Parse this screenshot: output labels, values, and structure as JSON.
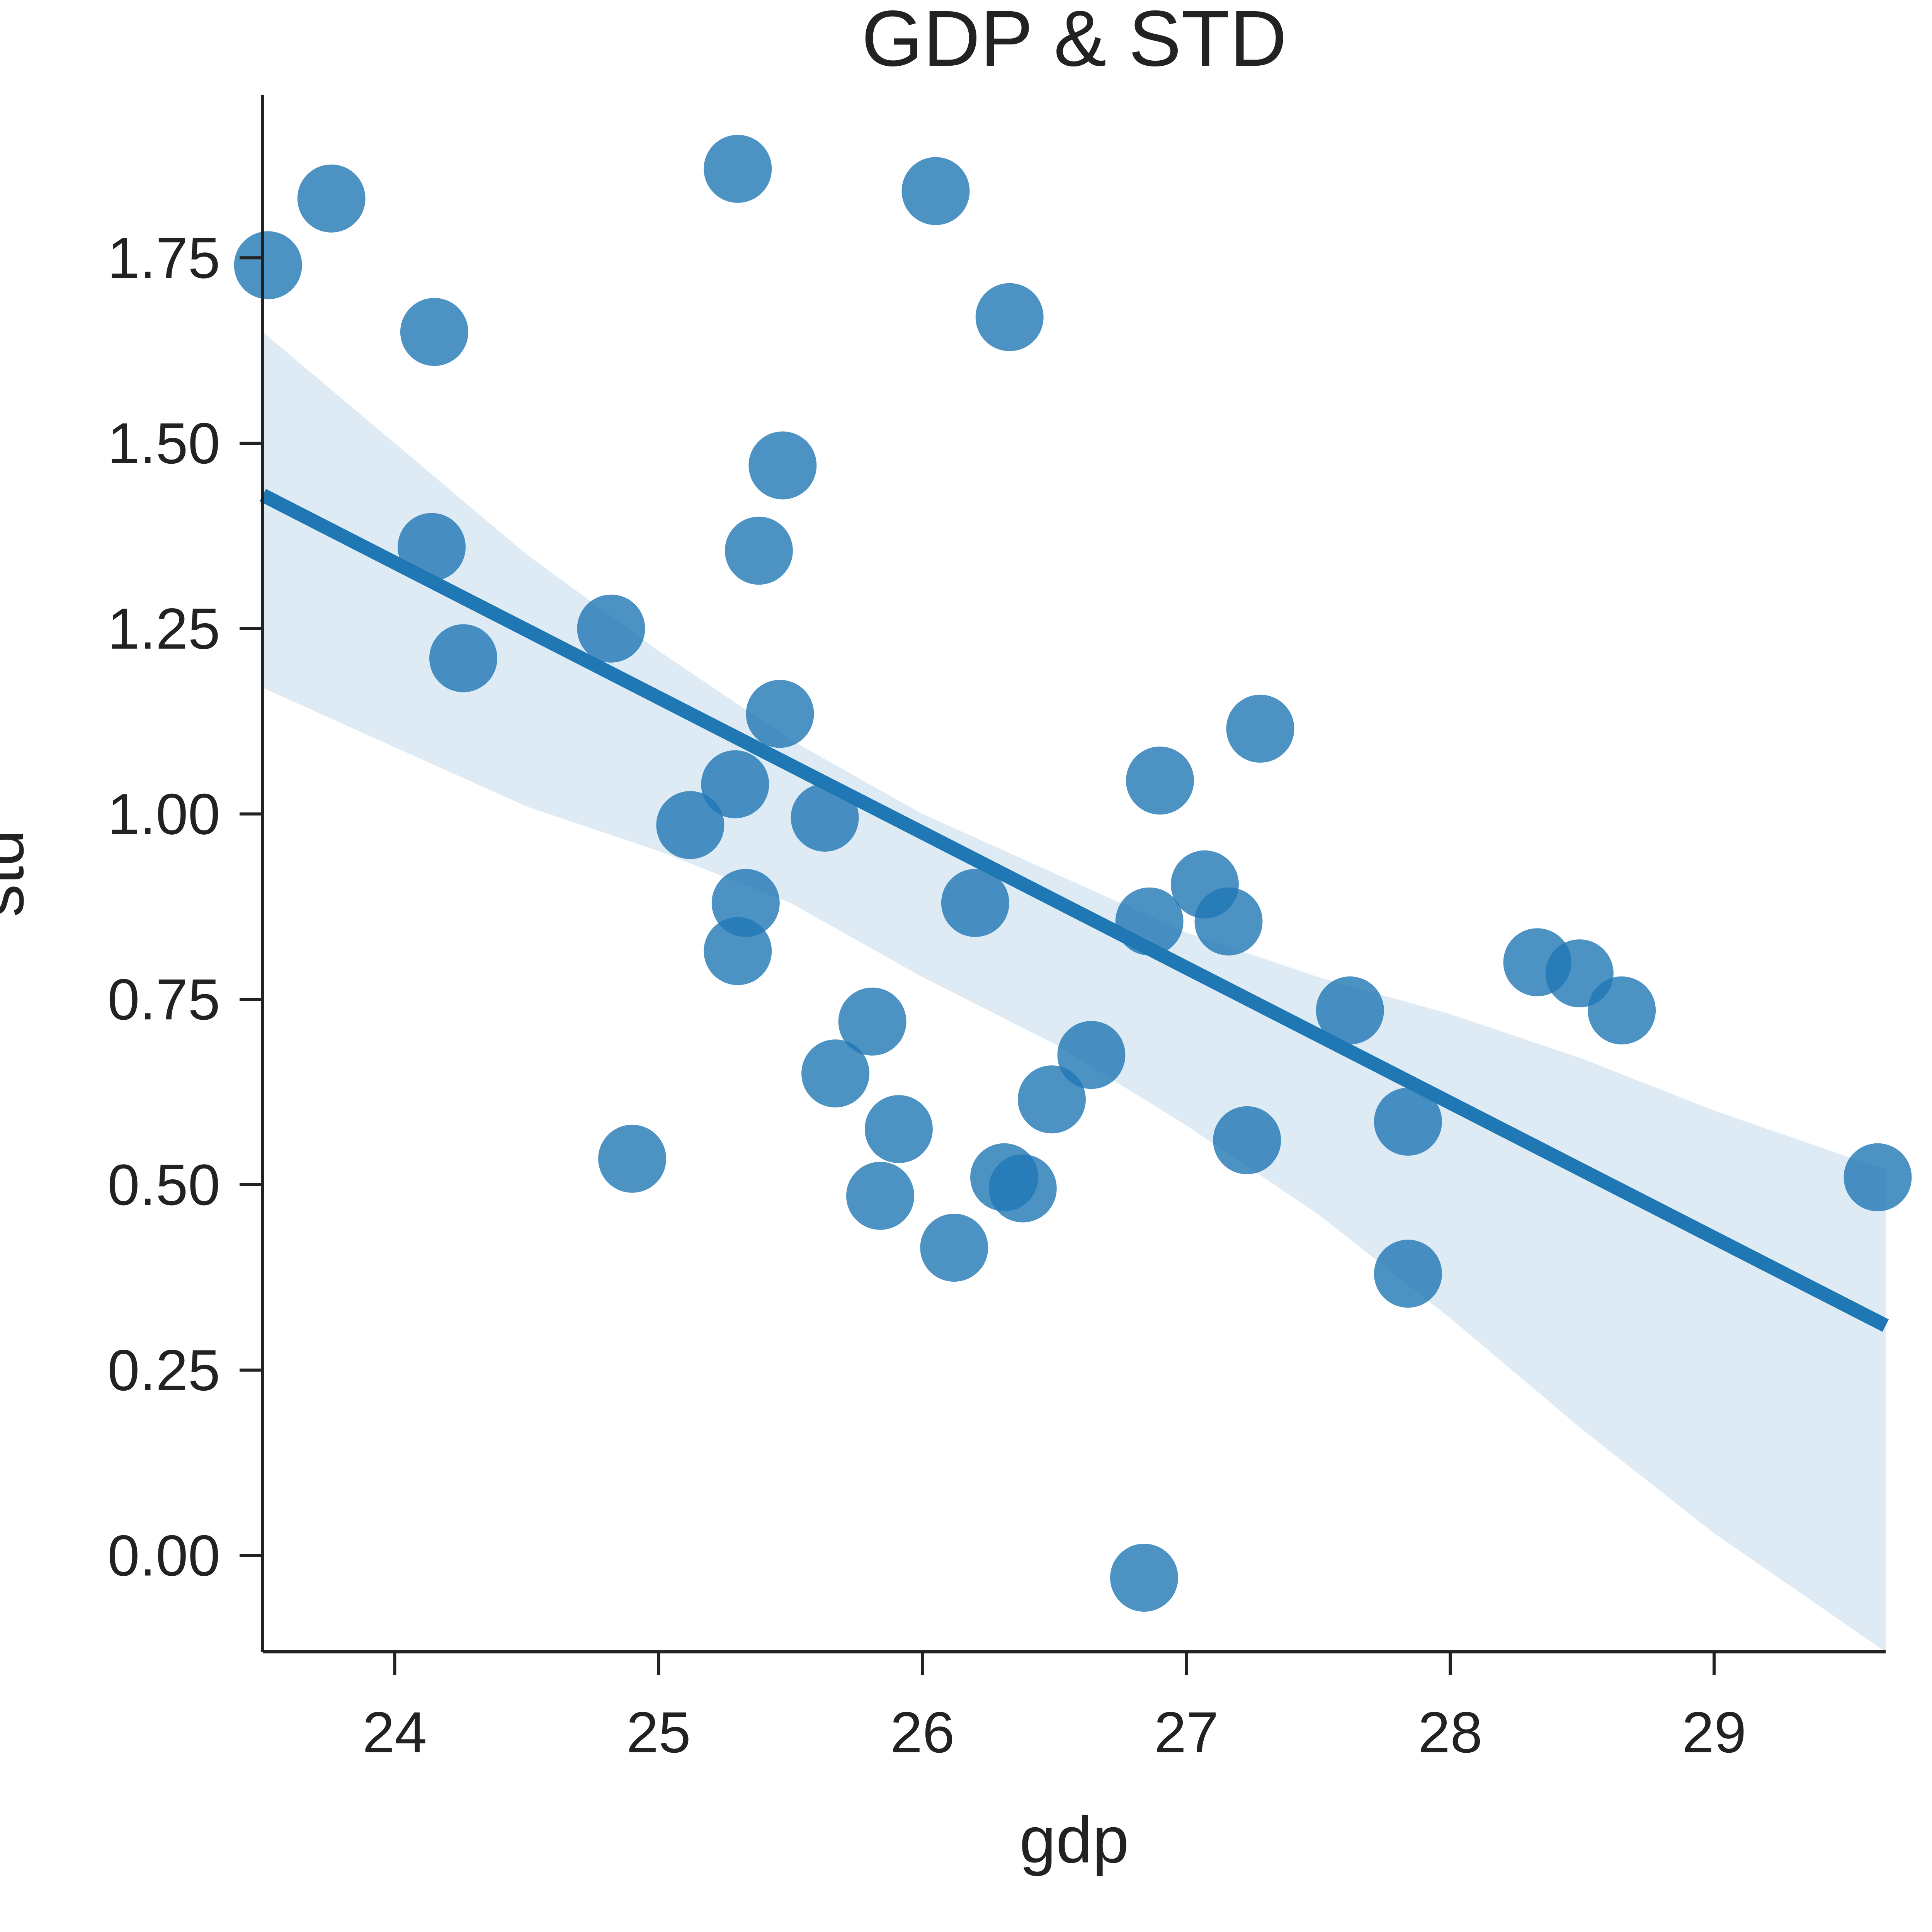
{
  "chart_data": {
    "type": "scatter",
    "title": "GDP & STD",
    "xlabel": "gdp",
    "ylabel": "std",
    "xlim": [
      23.5,
      29.65
    ],
    "ylim": [
      -0.13,
      1.97
    ],
    "x_ticks": [
      24,
      25,
      26,
      27,
      28,
      29
    ],
    "x_tick_labels": [
      "24",
      "25",
      "26",
      "27",
      "28",
      "29"
    ],
    "y_ticks": [
      0.0,
      0.25,
      0.5,
      0.75,
      1.0,
      1.25,
      1.5,
      1.75
    ],
    "y_tick_labels": [
      "0.00",
      "0.25",
      "0.50",
      "0.75",
      "1.00",
      "1.25",
      "1.50",
      "1.75"
    ],
    "grid": false,
    "points": [
      {
        "x": 23.52,
        "y": 1.74
      },
      {
        "x": 23.76,
        "y": 1.83
      },
      {
        "x": 24.15,
        "y": 1.65
      },
      {
        "x": 24.14,
        "y": 1.36
      },
      {
        "x": 24.26,
        "y": 1.21
      },
      {
        "x": 24.82,
        "y": 1.25
      },
      {
        "x": 24.9,
        "y": 0.535
      },
      {
        "x": 25.12,
        "y": 0.985
      },
      {
        "x": 25.3,
        "y": 1.87
      },
      {
        "x": 25.29,
        "y": 1.04
      },
      {
        "x": 25.33,
        "y": 0.88
      },
      {
        "x": 25.3,
        "y": 0.815
      },
      {
        "x": 25.38,
        "y": 1.355
      },
      {
        "x": 25.47,
        "y": 1.47
      },
      {
        "x": 25.46,
        "y": 1.135
      },
      {
        "x": 25.63,
        "y": 0.995
      },
      {
        "x": 25.67,
        "y": 0.65
      },
      {
        "x": 25.81,
        "y": 0.72
      },
      {
        "x": 25.84,
        "y": 0.485
      },
      {
        "x": 25.91,
        "y": 0.575
      },
      {
        "x": 26.05,
        "y": 1.84
      },
      {
        "x": 26.12,
        "y": 0.415
      },
      {
        "x": 26.2,
        "y": 0.88
      },
      {
        "x": 26.31,
        "y": 0.51
      },
      {
        "x": 26.33,
        "y": 1.67
      },
      {
        "x": 26.38,
        "y": 0.495
      },
      {
        "x": 26.49,
        "y": 0.615
      },
      {
        "x": 26.64,
        "y": 0.675
      },
      {
        "x": 26.84,
        "y": -0.03
      },
      {
        "x": 26.86,
        "y": 0.855
      },
      {
        "x": 26.9,
        "y": 1.045
      },
      {
        "x": 27.07,
        "y": 0.905
      },
      {
        "x": 27.16,
        "y": 0.855
      },
      {
        "x": 27.23,
        "y": 0.56
      },
      {
        "x": 27.28,
        "y": 1.115
      },
      {
        "x": 27.62,
        "y": 0.735
      },
      {
        "x": 27.84,
        "y": 0.585
      },
      {
        "x": 27.84,
        "y": 0.38
      },
      {
        "x": 28.33,
        "y": 0.8
      },
      {
        "x": 28.49,
        "y": 0.785
      },
      {
        "x": 28.65,
        "y": 0.735
      },
      {
        "x": 29.62,
        "y": 0.51
      }
    ],
    "regression": {
      "x": [
        23.5,
        29.65
      ],
      "y": [
        1.43,
        0.31
      ]
    },
    "confidence_band": {
      "x": [
        23.5,
        24.0,
        24.5,
        25.0,
        25.5,
        26.0,
        26.5,
        27.0,
        27.5,
        28.0,
        28.5,
        29.0,
        29.65
      ],
      "upper": [
        1.65,
        1.5,
        1.35,
        1.22,
        1.1,
        1.0,
        0.92,
        0.84,
        0.78,
        0.73,
        0.67,
        0.6,
        0.52
      ],
      "lower": [
        1.17,
        1.09,
        1.01,
        0.95,
        0.88,
        0.78,
        0.69,
        0.58,
        0.46,
        0.32,
        0.17,
        0.03,
        -0.13
      ]
    },
    "colors": {
      "points": "#1f77b4",
      "line": "#1f77b4",
      "band": "#1f77b4",
      "axes": "#222222"
    }
  }
}
